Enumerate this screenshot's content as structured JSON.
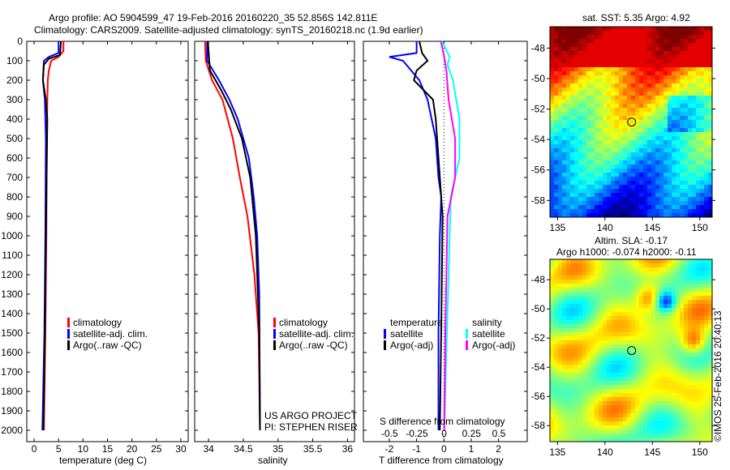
{
  "title_line1": "Argo profile: AO 5904599_47 19-Feb-2016 20160220_35 52.856S 142.811E",
  "title_line2": "Climatology: CARS2009. Satellite-adjusted climatology: synTS_20160218.nc (1.9d earlier)",
  "depth_ticks": [
    0,
    100,
    200,
    300,
    400,
    500,
    600,
    700,
    800,
    900,
    1000,
    1100,
    1200,
    1300,
    1400,
    1500,
    1600,
    1700,
    1800,
    1900,
    2000
  ],
  "legend": {
    "climatology": "climatology",
    "satellite_adj": "satellite-adj. clim.",
    "argo_raw": "Argo(..raw -QC)"
  },
  "project": {
    "line1": "US ARGO PROJECT",
    "line2": "PI: STEPHEN RISER"
  },
  "diff_legend": {
    "temperature": "temperature",
    "salinity": "salinity",
    "satellite": "satellite",
    "argo_adj": "Argo(-adj)"
  },
  "map1": {
    "title": "sat. SST: 5.35 Argo: 4.92"
  },
  "map2": {
    "title1": "Altim. SLA: -0.17",
    "title2": "Argo h1000: -0.074 h2000: -0.11"
  },
  "credit": "©IMOS 25-Feb-2016 20:40:13",
  "colors": {
    "climatology": "#ff0000",
    "satellite": "#0000ff",
    "argo": "#000000",
    "sal_satellite": "#00ffff",
    "sal_argo": "#ff00ff"
  },
  "chart_data": [
    {
      "type": "line",
      "xlabel": "temperature (deg C)",
      "ylabel": "depth",
      "xlim": [
        -1.5,
        31.5
      ],
      "ylim": [
        2060,
        0
      ],
      "xticks": [
        0,
        5,
        10,
        15,
        20,
        25,
        30
      ],
      "series": [
        {
          "name": "climatology",
          "depth": [
            0,
            50,
            80,
            100,
            150,
            200,
            300,
            500,
            1000,
            1500,
            2000
          ],
          "values": [
            6,
            6,
            5,
            3.5,
            3,
            2.8,
            2.7,
            2.6,
            2.5,
            2.3,
            2.0
          ]
        },
        {
          "name": "satellite-adj. clim.",
          "depth": [
            0,
            60,
            80,
            100,
            200,
            300,
            500,
            1000,
            1500,
            2000
          ],
          "values": [
            5,
            5,
            3,
            2,
            1.8,
            2.2,
            2.4,
            2.3,
            2.1,
            1.7
          ]
        },
        {
          "name": "Argo(..raw -QC)",
          "depth": [
            0,
            70,
            90,
            120,
            200,
            300,
            400,
            800,
            1500,
            2000
          ],
          "values": [
            5.5,
            5.3,
            3,
            2,
            1.8,
            2.4,
            2.7,
            2.5,
            2.2,
            1.9
          ]
        }
      ]
    },
    {
      "type": "line",
      "xlabel": "salinity",
      "xlim": [
        33.8,
        36.1
      ],
      "ylim": [
        2060,
        0
      ],
      "xticks": [
        34,
        34.5,
        35,
        35.5,
        36
      ],
      "series": [
        {
          "name": "climatology",
          "depth": [
            0,
            100,
            200,
            300,
            500,
            700,
            900,
            1200,
            1500,
            2000
          ],
          "values": [
            33.95,
            33.96,
            34.05,
            34.2,
            34.35,
            34.45,
            34.56,
            34.66,
            34.72,
            34.74
          ]
        },
        {
          "name": "satellite-adj. clim.",
          "depth": [
            0,
            100,
            200,
            300,
            400,
            600,
            800,
            1000,
            1300,
            2000
          ],
          "values": [
            33.98,
            33.98,
            34.15,
            34.3,
            34.42,
            34.58,
            34.65,
            34.7,
            34.73,
            34.74
          ]
        },
        {
          "name": "Argo(..raw -QC)",
          "depth": [
            0,
            150,
            250,
            350,
            500,
            700,
            1000,
            1500,
            2000
          ],
          "values": [
            33.99,
            34.02,
            34.18,
            34.32,
            34.48,
            34.6,
            34.68,
            34.73,
            34.74
          ]
        }
      ]
    },
    {
      "type": "line",
      "xlabel": "T difference from climatology",
      "x2label": "S difference from climatology",
      "xlim": [
        -2.95,
        3.05
      ],
      "x2lim": [
        -0.74,
        0.76
      ],
      "ylim": [
        2060,
        0
      ],
      "xticks": [
        -2,
        -1,
        0,
        1,
        2
      ],
      "x2ticks": [
        -0.5,
        -0.25,
        0,
        0.25,
        0.5
      ],
      "series": [
        {
          "name": "temperature satellite",
          "axis": "T",
          "depth": [
            0,
            60,
            80,
            100,
            200,
            300,
            500,
            700,
            800,
            1000,
            1500,
            2000
          ],
          "values": [
            -1,
            -1,
            -2,
            -1.5,
            -0.9,
            -0.6,
            -0.3,
            -0.2,
            -0.1,
            -0.15,
            -0.2,
            -0.2
          ]
        },
        {
          "name": "temperature Argo(-adj)",
          "axis": "T",
          "depth": [
            0,
            60,
            100,
            150,
            200,
            300,
            400,
            600,
            900,
            1500,
            2000
          ],
          "values": [
            -0.9,
            -0.8,
            -0.6,
            -1.0,
            -1.1,
            -0.4,
            -0.3,
            -0.2,
            -0.05,
            -0.1,
            -0.15
          ]
        },
        {
          "name": "salinity satellite",
          "axis": "S",
          "depth": [
            0,
            80,
            120,
            200,
            400,
            600,
            800,
            1000,
            2000
          ],
          "values": [
            -0.02,
            0.05,
            0.03,
            0.08,
            0.14,
            0.14,
            0.06,
            0.05,
            0.0
          ]
        },
        {
          "name": "salinity Argo(-adj)",
          "axis": "S",
          "depth": [
            0,
            80,
            150,
            300,
            500,
            700,
            900,
            1500,
            2000
          ],
          "values": [
            -0.03,
            0,
            0.02,
            0.04,
            0.1,
            0.1,
            0.03,
            0.01,
            0
          ]
        }
      ]
    },
    {
      "type": "heatmap",
      "title": "sat. SST: 5.35 Argo: 4.92",
      "xlim": [
        134.2,
        151.3
      ],
      "ylim": [
        -59.1,
        -46.6
      ],
      "xticks": [
        135,
        140,
        145,
        150
      ],
      "yticks": [
        -48,
        -50,
        -52,
        -54,
        -56,
        -58
      ],
      "marker": {
        "lon": 142.811,
        "lat": -52.856
      }
    },
    {
      "type": "heatmap",
      "title": "Altim. SLA: -0.17",
      "xlim": [
        134.2,
        151.3
      ],
      "ylim": [
        -59.1,
        -46.6
      ],
      "xticks": [
        135,
        140,
        145,
        150
      ],
      "yticks": [
        -48,
        -50,
        -52,
        -54,
        -56,
        -58
      ],
      "marker": {
        "lon": 142.811,
        "lat": -52.856
      }
    }
  ]
}
